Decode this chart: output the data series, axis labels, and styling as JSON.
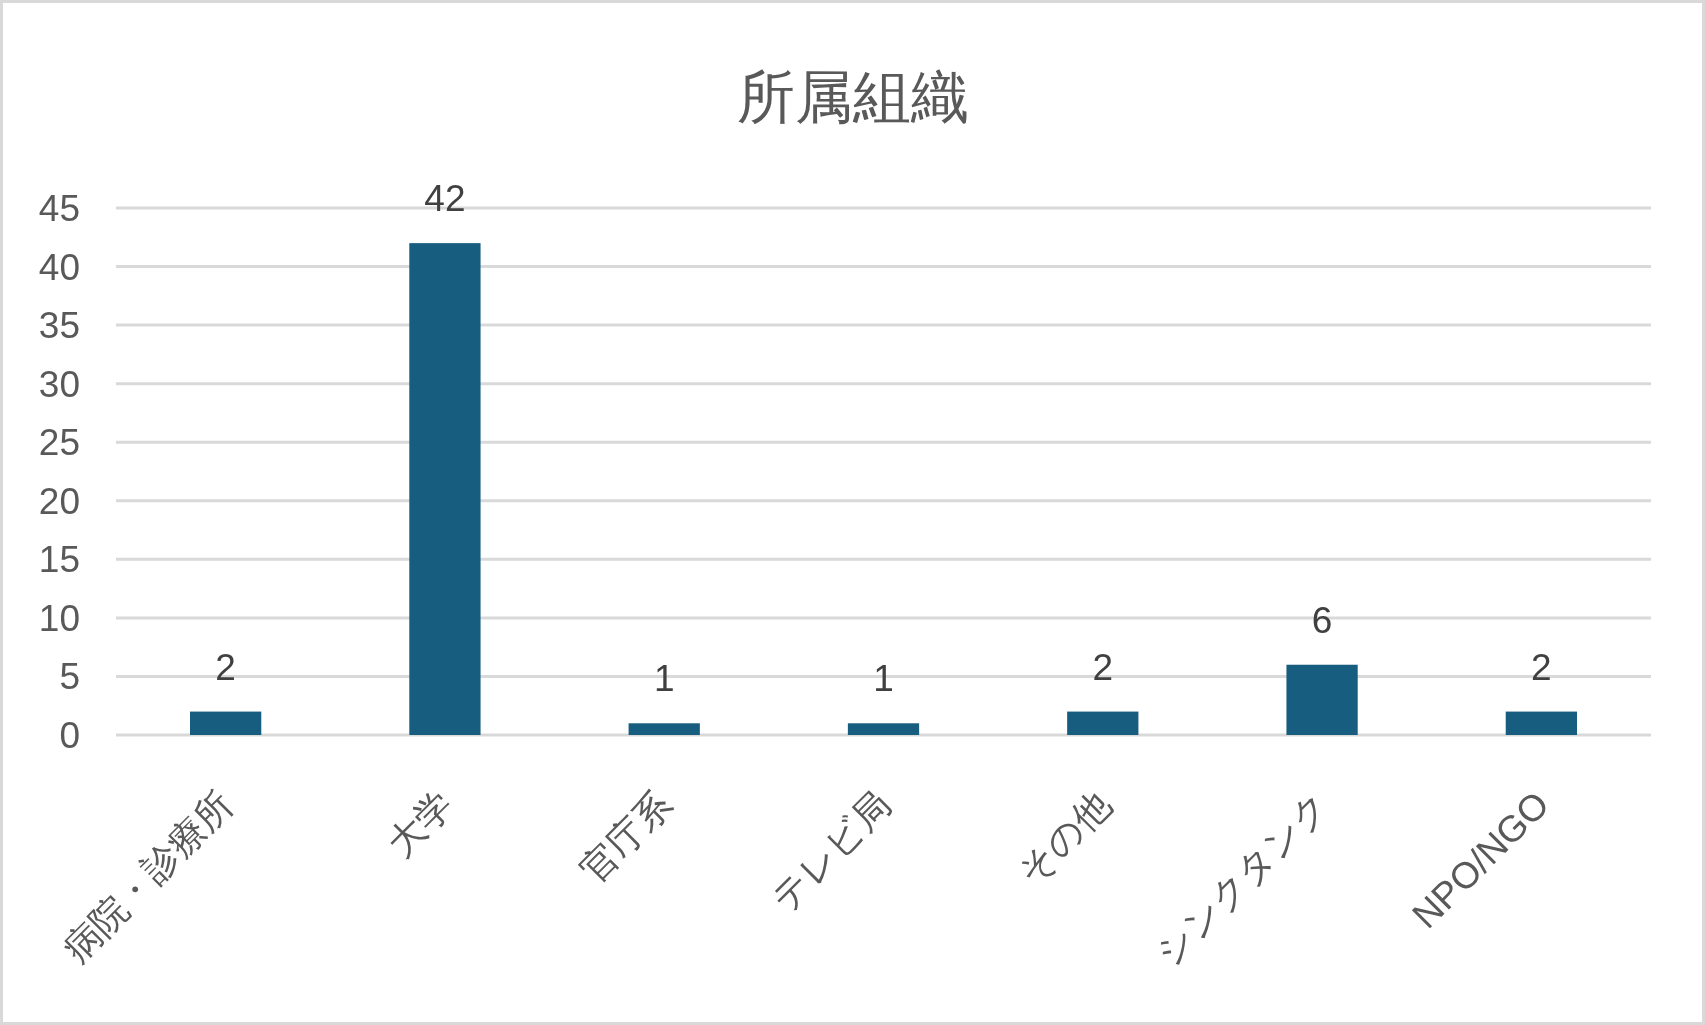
{
  "chart_data": {
    "type": "bar",
    "title": "所属組織",
    "categories": [
      "病院・診療所",
      "大学",
      "官庁系",
      "テレビ局",
      "その他",
      "シンクタンク",
      "NPO/NGO"
    ],
    "values": [
      2,
      42,
      1,
      1,
      2,
      6,
      2
    ],
    "color": "#175d7f",
    "ylim": [
      0,
      45
    ],
    "yticks": [
      0,
      5,
      10,
      15,
      20,
      25,
      30,
      35,
      40,
      45
    ],
    "grid": "y",
    "data_labels": true
  }
}
